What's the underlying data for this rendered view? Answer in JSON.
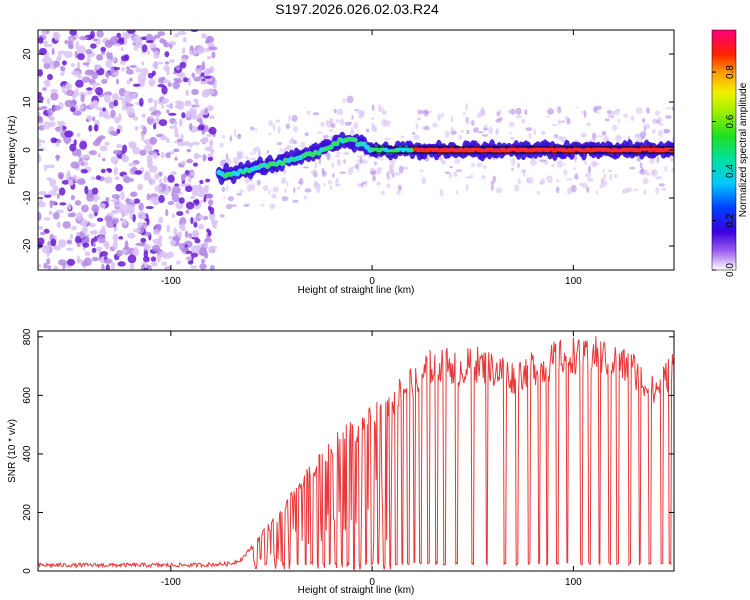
{
  "title": "S197.2026.026.02.03.R24",
  "colors": {
    "snr_line": "#e8383a",
    "track_line": "#000000",
    "speckle_light": "#d9c2f4",
    "speckle_mid": "#b48ae6",
    "speckle_dark": "#6a1bd6"
  },
  "chart_data": [
    {
      "type": "heatmap",
      "name": "spectrogram",
      "title": "S197.2026.026.02.03.R24",
      "xlabel": "Height of straight line (km)",
      "ylabel": "Frequency (Hz)",
      "xlim": [
        -166,
        150
      ],
      "ylim": [
        -25,
        25
      ],
      "xticks": [
        -100,
        0,
        100
      ],
      "xtick_labels": [
        "-100",
        "0",
        "100"
      ],
      "yticks": [
        -20,
        -10,
        0,
        10,
        20
      ],
      "ytick_labels": [
        "-20",
        "-10",
        "0",
        "10",
        "20"
      ],
      "noise_region_x": [
        -166,
        -78
      ],
      "signal_track": {
        "x": [
          -76,
          -70,
          -60,
          -50,
          -40,
          -30,
          -25,
          -20,
          -15,
          -10,
          -5,
          0,
          10,
          20,
          150
        ],
        "freq_hz": [
          -5,
          -5,
          -4,
          -3,
          -2,
          -1,
          0,
          1,
          2,
          2,
          1,
          0,
          0,
          0,
          0
        ]
      },
      "reference_line_x": [
        0,
        150
      ],
      "reference_line_freq_hz": 0,
      "colorbar": {
        "label": "Normalized spectral amplitude",
        "range": [
          0,
          0.97
        ],
        "ticks": [
          0.0,
          0.2,
          0.4,
          0.6,
          0.8
        ],
        "tick_labels": [
          "0.0",
          "0.2",
          "0.4",
          "0.6",
          "0.8"
        ]
      }
    },
    {
      "type": "line",
      "name": "snr",
      "title": "",
      "xlabel": "Height of straight line (km)",
      "ylabel": "SNR (10 * v/v)",
      "xlim": [
        -166,
        150
      ],
      "ylim": [
        0,
        820
      ],
      "xticks": [
        -100,
        0,
        100
      ],
      "xtick_labels": [
        "-100",
        "0",
        "100"
      ],
      "yticks": [
        0,
        200,
        400,
        600,
        800
      ],
      "ytick_labels": [
        "0",
        "200",
        "400",
        "600",
        "800"
      ],
      "series": [
        {
          "name": "SNR",
          "color": "#e8383a",
          "x": [
            -166,
            -150,
            -130,
            -110,
            -90,
            -80,
            -70,
            -65,
            -60,
            -55,
            -50,
            -45,
            -40,
            -35,
            -30,
            -25,
            -20,
            -15,
            -10,
            -5,
            0,
            5,
            10,
            15,
            20,
            25,
            30,
            35,
            40,
            45,
            50,
            55,
            60,
            65,
            70,
            75,
            80,
            85,
            90,
            95,
            100,
            105,
            110,
            115,
            120,
            125,
            130,
            135,
            140,
            145,
            150
          ],
          "y": [
            20,
            20,
            20,
            20,
            20,
            22,
            25,
            40,
            80,
            120,
            160,
            200,
            250,
            300,
            340,
            380,
            420,
            450,
            470,
            490,
            520,
            540,
            580,
            620,
            650,
            680,
            700,
            710,
            700,
            690,
            710,
            700,
            690,
            680,
            660,
            680,
            700,
            690,
            720,
            730,
            740,
            720,
            740,
            730,
            720,
            700,
            690,
            640,
            610,
            650,
            700
          ],
          "dropouts_x": [
            -58,
            -53,
            -48,
            -44,
            -41,
            -37,
            -33,
            -30,
            -27,
            -24,
            -21,
            -18,
            -15,
            -12,
            -9,
            -6,
            -3,
            0,
            3,
            6,
            9,
            12,
            15,
            18,
            21,
            24,
            28,
            32,
            36,
            42,
            50,
            57,
            66,
            72,
            78,
            83,
            87,
            92,
            97,
            104,
            108,
            113,
            118,
            122,
            128,
            133,
            138,
            144,
            148
          ]
        }
      ]
    }
  ]
}
